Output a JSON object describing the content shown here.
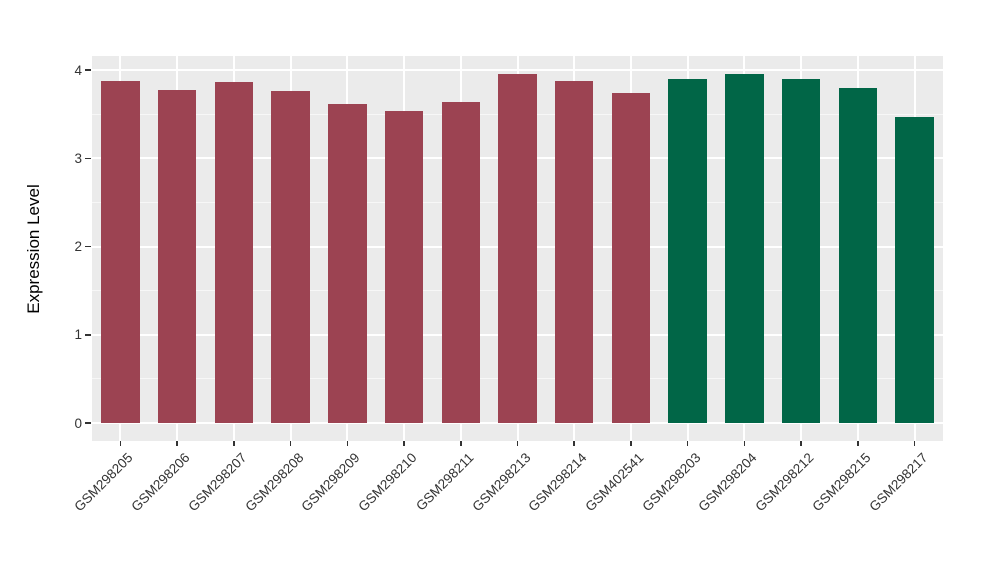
{
  "chart_data": {
    "type": "bar",
    "title": "",
    "xlabel": "",
    "ylabel": "Expression Level",
    "ylim": [
      0,
      4
    ],
    "yticks": [
      0,
      1,
      2,
      3,
      4
    ],
    "yticks_minor": [
      0.5,
      1.5,
      2.5,
      3.5
    ],
    "grid": true,
    "legend": false,
    "categories": [
      "GSM298205",
      "GSM298206",
      "GSM298207",
      "GSM298208",
      "GSM298209",
      "GSM298210",
      "GSM298211",
      "GSM298213",
      "GSM298214",
      "GSM402541",
      "GSM298203",
      "GSM298204",
      "GSM298212",
      "GSM298215",
      "GSM298217"
    ],
    "series": [
      {
        "name": "Expression Level",
        "values": [
          3.88,
          3.77,
          3.86,
          3.76,
          3.61,
          3.54,
          3.64,
          3.96,
          3.88,
          3.74,
          3.9,
          3.95,
          3.9,
          3.8,
          3.47
        ]
      }
    ],
    "bar_groups": [
      "group1",
      "group1",
      "group1",
      "group1",
      "group1",
      "group1",
      "group1",
      "group1",
      "group1",
      "group1",
      "group2",
      "group2",
      "group2",
      "group2",
      "group2"
    ],
    "x_tick_rotation_deg": 45
  },
  "colors": {
    "group1": "#9C4352",
    "group2": "#016647",
    "panel_background": "#EBEBEB",
    "grid_major": "#FFFFFF",
    "grid_minor": "rgba(255,255,255,0.6)",
    "tick_mark": "#333333",
    "tick_label": "#333333",
    "axis_title": "#000000",
    "figure_background": "#FFFFFF"
  }
}
